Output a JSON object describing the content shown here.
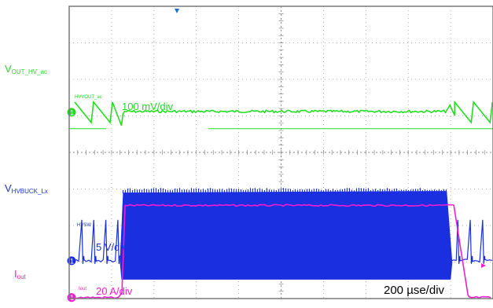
{
  "chart_data": {
    "type": "line",
    "title": "",
    "grid": true,
    "timebase": "200 µse/div",
    "divisions": {
      "x": 10,
      "y": 8
    },
    "series": [
      {
        "name_main": "V",
        "name_sub": "OUT_HV_ac",
        "trace_tag": "HVVOUT_ac",
        "scale": "100  mV/div",
        "color": "#22dd22",
        "marker": "1",
        "behavior": "sawtooth ripple, flat while load is stepped",
        "ref_div": 2.9,
        "events_div": [
          {
            "t": 1.27,
            "what": "dip"
          },
          {
            "t": 8.91,
            "what": "overshoot"
          }
        ]
      },
      {
        "name_main": "V",
        "name_sub": "HVBUCK_Lx",
        "trace_tag": "HVSW",
        "scale": "5  V/div",
        "color": "#1a2fe0",
        "marker": "1",
        "behavior": "burst pulses, continuous switching while load is high",
        "ref_div": 6.9,
        "burst_span_div": [
          1.27,
          8.91
        ]
      },
      {
        "name_main": "I",
        "name_sub": "out",
        "trace_tag": "Iout",
        "scale": "20  A/div",
        "color": "#ee1fd0",
        "marker": "1",
        "behavior": "load step",
        "ref_div": 7.95,
        "high_div": 5.6,
        "step_up_div": 1.3,
        "step_down_div": 9.15
      }
    ]
  }
}
